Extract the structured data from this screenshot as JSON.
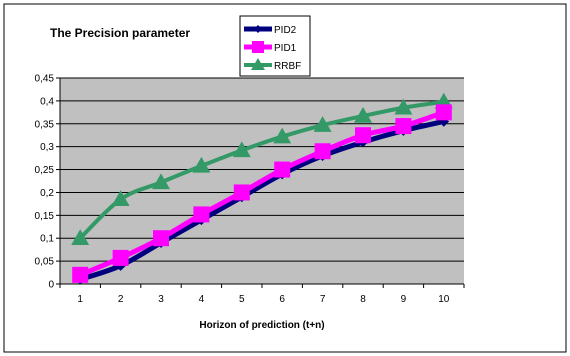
{
  "chart_data": {
    "type": "line",
    "title": "The Precision parameter",
    "xlabel": "Horizon of prediction (t+n)",
    "ylabel": "",
    "x": [
      1,
      2,
      3,
      4,
      5,
      6,
      7,
      8,
      9,
      10
    ],
    "ylim": [
      0,
      0.45
    ],
    "yticks": [
      "0",
      "0,05",
      "0,1",
      "0,15",
      "0,2",
      "0,25",
      "0,3",
      "0,35",
      "0,4",
      "0,45"
    ],
    "xticks": [
      "1",
      "2",
      "3",
      "4",
      "5",
      "6",
      "7",
      "8",
      "9",
      "10"
    ],
    "grid": true,
    "legend_position": "top-center",
    "plot_background": "#c0c0c0",
    "series": [
      {
        "name": "PID2",
        "color": "#00007f",
        "marker": "diamond",
        "values": [
          0.01,
          0.04,
          0.09,
          0.14,
          0.19,
          0.24,
          0.28,
          0.31,
          0.335,
          0.355
        ]
      },
      {
        "name": "PID1",
        "color": "#ff00ff",
        "marker": "square",
        "values": [
          0.02,
          0.057,
          0.1,
          0.152,
          0.2,
          0.25,
          0.29,
          0.325,
          0.345,
          0.375
        ]
      },
      {
        "name": "RRBF",
        "color": "#339966",
        "marker": "triangle",
        "values": [
          0.1,
          0.185,
          0.222,
          0.258,
          0.292,
          0.322,
          0.347,
          0.367,
          0.385,
          0.398
        ]
      }
    ]
  }
}
